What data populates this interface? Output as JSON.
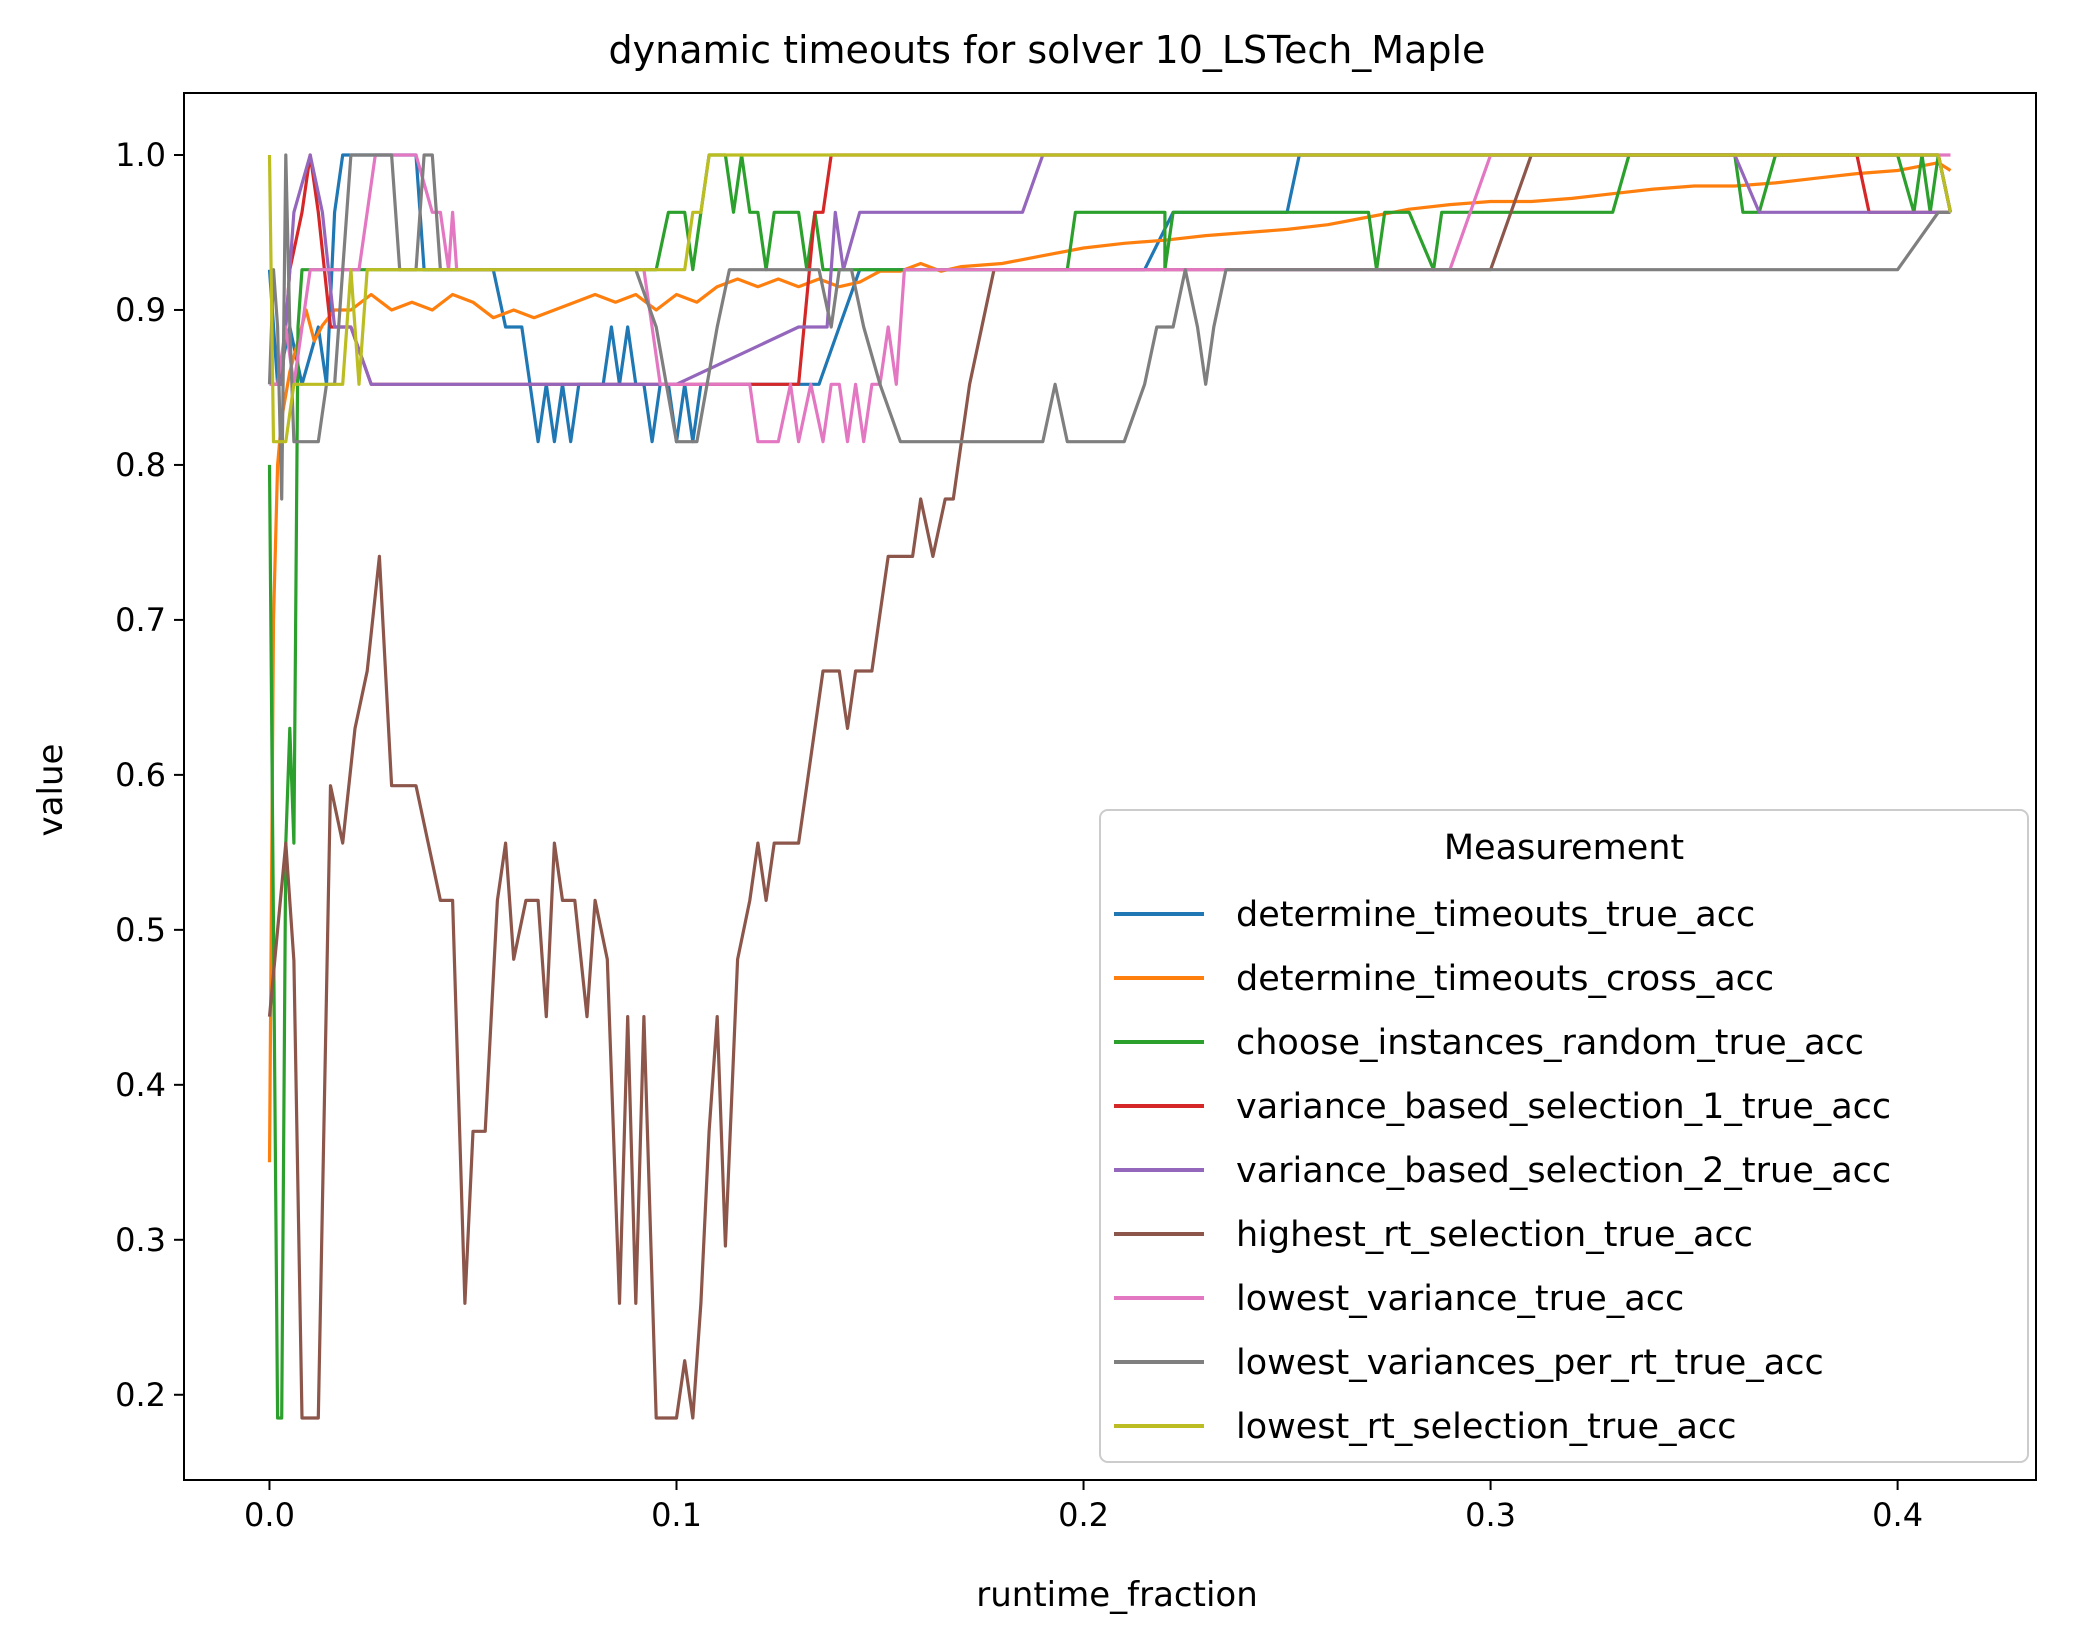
{
  "chart_data": {
    "type": "line",
    "title": "dynamic timeouts for solver 10_LSTech_Maple",
    "xlabel": "runtime_fraction",
    "ylabel": "value",
    "xlim": [
      -0.021,
      0.434
    ],
    "ylim": [
      0.145,
      1.04
    ],
    "xticks": [
      0.0,
      0.1,
      0.2,
      0.3,
      0.4
    ],
    "xtick_labels": [
      "0.0",
      "0.1",
      "0.2",
      "0.3",
      "0.4"
    ],
    "yticks": [
      0.2,
      0.3,
      0.4,
      0.5,
      0.6,
      0.7,
      0.8,
      0.9,
      1.0
    ],
    "ytick_labels": [
      "0.2",
      "0.3",
      "0.4",
      "0.5",
      "0.6",
      "0.7",
      "0.8",
      "0.9",
      "1.0"
    ],
    "grid": false,
    "legend": {
      "title": "Measurement",
      "placement": "lower-right"
    },
    "series": [
      {
        "name": "determine_timeouts_true_acc",
        "color": "#1f77b4",
        "x": [
          0.0,
          0.002,
          0.005,
          0.008,
          0.012,
          0.014,
          0.016,
          0.018,
          0.022,
          0.03,
          0.036,
          0.038,
          0.04,
          0.044,
          0.055,
          0.058,
          0.062,
          0.064,
          0.066,
          0.068,
          0.07,
          0.072,
          0.074,
          0.076,
          0.078,
          0.082,
          0.084,
          0.086,
          0.088,
          0.09,
          0.092,
          0.094,
          0.096,
          0.098,
          0.1,
          0.102,
          0.104,
          0.106,
          0.11,
          0.118,
          0.125,
          0.135,
          0.14,
          0.145,
          0.15,
          0.155,
          0.16,
          0.2,
          0.215,
          0.222,
          0.25,
          0.253,
          0.256,
          0.3,
          0.4,
          0.405,
          0.41,
          0.413
        ],
        "y": [
          0.926,
          0.852,
          0.889,
          0.852,
          0.889,
          0.852,
          0.963,
          1.0,
          1.0,
          1.0,
          1.0,
          0.926,
          0.926,
          0.926,
          0.926,
          0.889,
          0.889,
          0.852,
          0.815,
          0.852,
          0.815,
          0.852,
          0.815,
          0.852,
          0.852,
          0.852,
          0.889,
          0.852,
          0.889,
          0.852,
          0.852,
          0.815,
          0.852,
          0.852,
          0.815,
          0.852,
          0.815,
          0.852,
          0.852,
          0.852,
          0.852,
          0.852,
          0.889,
          0.926,
          0.926,
          0.926,
          0.926,
          0.926,
          0.926,
          0.963,
          0.963,
          1.0,
          1.0,
          1.0,
          1.0,
          1.0,
          1.0,
          0.963
        ]
      },
      {
        "name": "determine_timeouts_cross_acc",
        "color": "#ff7f0e",
        "x": [
          0.0,
          0.001,
          0.002,
          0.003,
          0.005,
          0.007,
          0.009,
          0.011,
          0.013,
          0.016,
          0.02,
          0.025,
          0.03,
          0.035,
          0.04,
          0.045,
          0.05,
          0.055,
          0.06,
          0.065,
          0.07,
          0.075,
          0.08,
          0.085,
          0.09,
          0.095,
          0.1,
          0.105,
          0.11,
          0.115,
          0.12,
          0.125,
          0.13,
          0.135,
          0.14,
          0.145,
          0.15,
          0.155,
          0.16,
          0.165,
          0.17,
          0.18,
          0.19,
          0.2,
          0.21,
          0.22,
          0.23,
          0.24,
          0.25,
          0.26,
          0.27,
          0.28,
          0.29,
          0.3,
          0.31,
          0.32,
          0.33,
          0.34,
          0.35,
          0.36,
          0.37,
          0.38,
          0.39,
          0.4,
          0.41,
          0.413
        ],
        "y": [
          0.35,
          0.7,
          0.8,
          0.83,
          0.86,
          0.88,
          0.9,
          0.88,
          0.89,
          0.9,
          0.9,
          0.91,
          0.9,
          0.905,
          0.9,
          0.91,
          0.905,
          0.895,
          0.9,
          0.895,
          0.9,
          0.905,
          0.91,
          0.905,
          0.91,
          0.9,
          0.91,
          0.905,
          0.915,
          0.92,
          0.915,
          0.92,
          0.915,
          0.92,
          0.915,
          0.918,
          0.925,
          0.925,
          0.93,
          0.925,
          0.928,
          0.93,
          0.935,
          0.94,
          0.943,
          0.945,
          0.948,
          0.95,
          0.952,
          0.955,
          0.96,
          0.965,
          0.968,
          0.97,
          0.97,
          0.972,
          0.975,
          0.978,
          0.98,
          0.98,
          0.982,
          0.985,
          0.988,
          0.99,
          0.995,
          0.99
        ]
      },
      {
        "name": "choose_instances_random_true_acc",
        "color": "#2ca02c",
        "x": [
          0.0,
          0.001,
          0.002,
          0.003,
          0.004,
          0.005,
          0.006,
          0.007,
          0.008,
          0.009,
          0.015,
          0.02,
          0.03,
          0.04,
          0.05,
          0.06,
          0.07,
          0.08,
          0.09,
          0.095,
          0.098,
          0.102,
          0.104,
          0.106,
          0.108,
          0.11,
          0.112,
          0.114,
          0.116,
          0.118,
          0.12,
          0.122,
          0.124,
          0.126,
          0.13,
          0.132,
          0.134,
          0.136,
          0.14,
          0.15,
          0.16,
          0.19,
          0.196,
          0.198,
          0.21,
          0.22,
          0.22,
          0.222,
          0.226,
          0.23,
          0.27,
          0.272,
          0.274,
          0.276,
          0.28,
          0.286,
          0.288,
          0.33,
          0.334,
          0.34,
          0.36,
          0.362,
          0.366,
          0.37,
          0.4,
          0.404,
          0.406,
          0.408,
          0.41,
          0.413
        ],
        "y": [
          0.8,
          0.5,
          0.185,
          0.185,
          0.556,
          0.63,
          0.556,
          0.889,
          0.926,
          0.926,
          0.926,
          0.926,
          0.926,
          0.926,
          0.926,
          0.926,
          0.926,
          0.926,
          0.926,
          0.926,
          0.963,
          0.963,
          0.926,
          0.963,
          1.0,
          1.0,
          1.0,
          0.963,
          1.0,
          0.963,
          0.963,
          0.926,
          0.963,
          0.963,
          0.963,
          0.926,
          0.963,
          0.926,
          0.926,
          0.926,
          0.926,
          0.926,
          0.926,
          0.963,
          0.963,
          0.963,
          0.926,
          0.963,
          0.963,
          0.963,
          0.963,
          0.926,
          0.963,
          0.963,
          0.963,
          0.926,
          0.963,
          0.963,
          1.0,
          1.0,
          1.0,
          0.963,
          0.963,
          1.0,
          1.0,
          0.963,
          1.0,
          0.963,
          1.0,
          0.963
        ]
      },
      {
        "name": "variance_based_selection_1_true_acc",
        "color": "#d62728",
        "x": [
          0.0,
          0.003,
          0.005,
          0.008,
          0.01,
          0.012,
          0.015,
          0.02,
          0.025,
          0.03,
          0.035,
          0.05,
          0.1,
          0.13,
          0.134,
          0.136,
          0.138,
          0.14,
          0.142,
          0.15,
          0.2,
          0.39,
          0.393,
          0.396,
          0.4,
          0.41,
          0.413
        ],
        "y": [
          0.852,
          0.852,
          0.926,
          0.963,
          1.0,
          0.963,
          0.889,
          0.889,
          0.852,
          0.852,
          0.852,
          0.852,
          0.852,
          0.852,
          0.963,
          0.963,
          1.0,
          1.0,
          1.0,
          1.0,
          1.0,
          1.0,
          0.963,
          0.963,
          0.963,
          0.963,
          0.963
        ]
      },
      {
        "name": "variance_based_selection_2_true_acc",
        "color": "#9467bd",
        "x": [
          0.0,
          0.003,
          0.006,
          0.01,
          0.013,
          0.016,
          0.02,
          0.025,
          0.035,
          0.05,
          0.1,
          0.13,
          0.137,
          0.139,
          0.141,
          0.145,
          0.16,
          0.185,
          0.19,
          0.2,
          0.36,
          0.366,
          0.4,
          0.41,
          0.413
        ],
        "y": [
          0.852,
          0.852,
          0.963,
          1.0,
          0.963,
          0.889,
          0.889,
          0.852,
          0.852,
          0.852,
          0.852,
          0.889,
          0.889,
          0.963,
          0.926,
          0.963,
          0.963,
          0.963,
          1.0,
          1.0,
          1.0,
          0.963,
          0.963,
          0.963,
          0.963
        ]
      },
      {
        "name": "highest_rt_selection_true_acc",
        "color": "#8c564b",
        "x": [
          0.0,
          0.002,
          0.004,
          0.006,
          0.008,
          0.01,
          0.012,
          0.015,
          0.018,
          0.021,
          0.024,
          0.027,
          0.03,
          0.033,
          0.036,
          0.039,
          0.042,
          0.045,
          0.048,
          0.05,
          0.053,
          0.056,
          0.058,
          0.06,
          0.063,
          0.066,
          0.068,
          0.07,
          0.072,
          0.075,
          0.078,
          0.08,
          0.083,
          0.086,
          0.088,
          0.09,
          0.092,
          0.095,
          0.098,
          0.1,
          0.102,
          0.104,
          0.106,
          0.108,
          0.11,
          0.112,
          0.115,
          0.118,
          0.12,
          0.122,
          0.124,
          0.126,
          0.128,
          0.13,
          0.132,
          0.134,
          0.136,
          0.138,
          0.14,
          0.142,
          0.144,
          0.146,
          0.148,
          0.15,
          0.152,
          0.155,
          0.158,
          0.16,
          0.163,
          0.166,
          0.168,
          0.17,
          0.172,
          0.175,
          0.178,
          0.18,
          0.183,
          0.186,
          0.188,
          0.19,
          0.192,
          0.195,
          0.198,
          0.2,
          0.203,
          0.206,
          0.21,
          0.213,
          0.216,
          0.22,
          0.222,
          0.225,
          0.228,
          0.23,
          0.25,
          0.3,
          0.31,
          0.313,
          0.32,
          0.4,
          0.41,
          0.413
        ],
        "y": [
          0.444,
          0.5,
          0.556,
          0.48,
          0.185,
          0.185,
          0.185,
          0.593,
          0.556,
          0.63,
          0.667,
          0.741,
          0.593,
          0.593,
          0.593,
          0.556,
          0.519,
          0.519,
          0.259,
          0.37,
          0.37,
          0.519,
          0.556,
          0.481,
          0.519,
          0.519,
          0.444,
          0.556,
          0.519,
          0.519,
          0.444,
          0.519,
          0.481,
          0.259,
          0.444,
          0.259,
          0.444,
          0.185,
          0.185,
          0.185,
          0.222,
          0.185,
          0.259,
          0.37,
          0.444,
          0.296,
          0.481,
          0.519,
          0.556,
          0.519,
          0.556,
          0.556,
          0.556,
          0.556,
          0.593,
          0.63,
          0.667,
          0.667,
          0.667,
          0.63,
          0.667,
          0.667,
          0.667,
          0.704,
          0.741,
          0.741,
          0.741,
          0.778,
          0.741,
          0.778,
          0.778,
          0.815,
          0.852,
          0.889,
          0.926,
          0.926,
          0.926,
          0.926,
          0.926,
          0.926,
          0.926,
          0.926,
          0.926,
          0.926,
          0.926,
          0.926,
          0.926,
          0.926,
          0.926,
          0.926,
          0.926,
          0.926,
          0.926,
          0.926,
          0.926,
          0.926,
          1.0,
          1.0,
          1.0,
          1.0,
          1.0,
          0.963
        ]
      },
      {
        "name": "lowest_variance_true_acc",
        "color": "#e377c2",
        "x": [
          0.0,
          0.002,
          0.004,
          0.006,
          0.01,
          0.014,
          0.018,
          0.022,
          0.024,
          0.026,
          0.03,
          0.036,
          0.04,
          0.042,
          0.044,
          0.045,
          0.046,
          0.06,
          0.092,
          0.094,
          0.096,
          0.1,
          0.11,
          0.118,
          0.12,
          0.125,
          0.128,
          0.13,
          0.133,
          0.136,
          0.138,
          0.14,
          0.142,
          0.144,
          0.146,
          0.148,
          0.15,
          0.152,
          0.154,
          0.156,
          0.2,
          0.23,
          0.29,
          0.3,
          0.4,
          0.413
        ],
        "y": [
          0.852,
          0.852,
          0.889,
          0.852,
          0.926,
          0.926,
          0.926,
          0.926,
          0.963,
          1.0,
          1.0,
          1.0,
          0.963,
          0.963,
          0.926,
          0.963,
          0.926,
          0.926,
          0.926,
          0.889,
          0.852,
          0.852,
          0.852,
          0.852,
          0.815,
          0.815,
          0.852,
          0.815,
          0.852,
          0.815,
          0.852,
          0.852,
          0.815,
          0.852,
          0.815,
          0.852,
          0.852,
          0.889,
          0.852,
          0.926,
          0.926,
          0.926,
          0.926,
          1.0,
          1.0,
          1.0
        ]
      },
      {
        "name": "lowest_variances_per_rt_true_acc",
        "color": "#7f7f7f",
        "x": [
          0.0,
          0.001,
          0.002,
          0.003,
          0.004,
          0.005,
          0.006,
          0.008,
          0.01,
          0.012,
          0.014,
          0.016,
          0.018,
          0.02,
          0.022,
          0.024,
          0.026,
          0.028,
          0.03,
          0.032,
          0.034,
          0.036,
          0.038,
          0.04,
          0.042,
          0.05,
          0.09,
          0.095,
          0.1,
          0.105,
          0.11,
          0.113,
          0.116,
          0.12,
          0.125,
          0.13,
          0.135,
          0.138,
          0.14,
          0.143,
          0.146,
          0.15,
          0.155,
          0.16,
          0.19,
          0.193,
          0.196,
          0.2,
          0.21,
          0.215,
          0.218,
          0.222,
          0.225,
          0.228,
          0.23,
          0.232,
          0.235,
          0.24,
          0.26,
          0.3,
          0.4,
          0.41,
          0.413
        ],
        "y": [
          0.852,
          0.926,
          0.889,
          0.778,
          1.0,
          0.889,
          0.815,
          0.815,
          0.815,
          0.815,
          0.852,
          0.852,
          0.926,
          1.0,
          1.0,
          1.0,
          1.0,
          1.0,
          1.0,
          0.926,
          0.926,
          0.926,
          1.0,
          1.0,
          0.926,
          0.926,
          0.926,
          0.889,
          0.815,
          0.815,
          0.889,
          0.926,
          0.926,
          0.926,
          0.926,
          0.926,
          0.926,
          0.889,
          0.926,
          0.926,
          0.889,
          0.852,
          0.815,
          0.815,
          0.815,
          0.852,
          0.815,
          0.815,
          0.815,
          0.852,
          0.889,
          0.889,
          0.926,
          0.889,
          0.852,
          0.889,
          0.926,
          0.926,
          0.926,
          0.926,
          0.926,
          0.963,
          0.963
        ]
      },
      {
        "name": "lowest_rt_selection_true_acc",
        "color": "#bcbd22",
        "x": [
          0.0,
          0.001,
          0.002,
          0.004,
          0.006,
          0.008,
          0.012,
          0.016,
          0.018,
          0.02,
          0.022,
          0.024,
          0.026,
          0.03,
          0.05,
          0.1,
          0.102,
          0.104,
          0.106,
          0.108,
          0.11,
          0.2,
          0.3,
          0.4,
          0.41,
          0.413
        ],
        "y": [
          1.0,
          0.815,
          0.815,
          0.815,
          0.852,
          0.852,
          0.852,
          0.852,
          0.852,
          0.926,
          0.852,
          0.926,
          0.926,
          0.926,
          0.926,
          0.926,
          0.926,
          0.963,
          0.963,
          1.0,
          1.0,
          1.0,
          1.0,
          1.0,
          1.0,
          0.963
        ]
      }
    ]
  }
}
